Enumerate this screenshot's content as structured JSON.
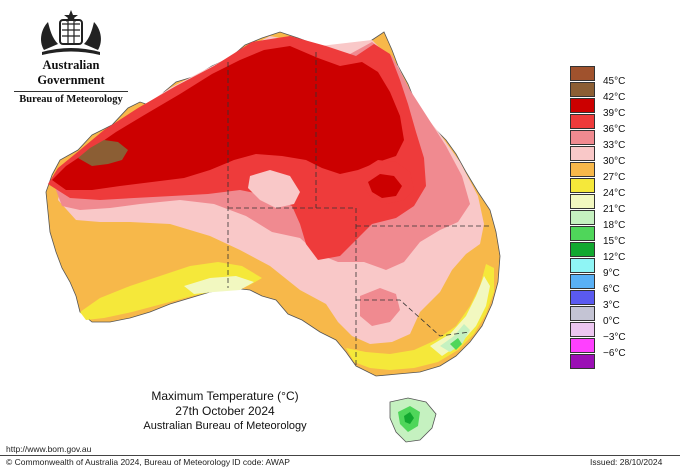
{
  "header": {
    "organisation": "Australian Government",
    "bureau": "Bureau of Meteorology"
  },
  "map": {
    "title": "Maximum Temperature (°C)",
    "date": "27th October 2024",
    "organisation": "Australian Bureau of Meteorology"
  },
  "legend": [
    {
      "label": "45°C",
      "color": "#a0522d"
    },
    {
      "label": "42°C",
      "color": "#8b5e34"
    },
    {
      "label": "39°C",
      "color": "#cc0000"
    },
    {
      "label": "36°C",
      "color": "#ee3b3b"
    },
    {
      "label": "33°C",
      "color": "#f08a90"
    },
    {
      "label": "30°C",
      "color": "#f9c8c8"
    },
    {
      "label": "27°C",
      "color": "#f7b84a"
    },
    {
      "label": "24°C",
      "color": "#f5e83a"
    },
    {
      "label": "21°C",
      "color": "#f2f8c0"
    },
    {
      "label": "18°C",
      "color": "#c5f1c0"
    },
    {
      "label": "15°C",
      "color": "#4fd65a"
    },
    {
      "label": "12°C",
      "color": "#12a830"
    },
    {
      "label": "9°C",
      "color": "#8ff5f5"
    },
    {
      "label": "6°C",
      "color": "#59b0f5"
    },
    {
      "label": "3°C",
      "color": "#5a5af0"
    },
    {
      "label": "0°C",
      "color": "#c4c4d4"
    },
    {
      "label": "−3°C",
      "color": "#ecc6f0"
    },
    {
      "label": "−6°C",
      "color": "#ff40ff"
    },
    {
      "label": "",
      "color": "#9b0fb5"
    }
  ],
  "footer": {
    "url": "http://www.bom.gov.au",
    "copyright": "© Commonwealth of Australia 2024, Bureau of Meteorology",
    "id_code": "ID code: AWAP",
    "issued": "Issued: 28/10/2024"
  }
}
